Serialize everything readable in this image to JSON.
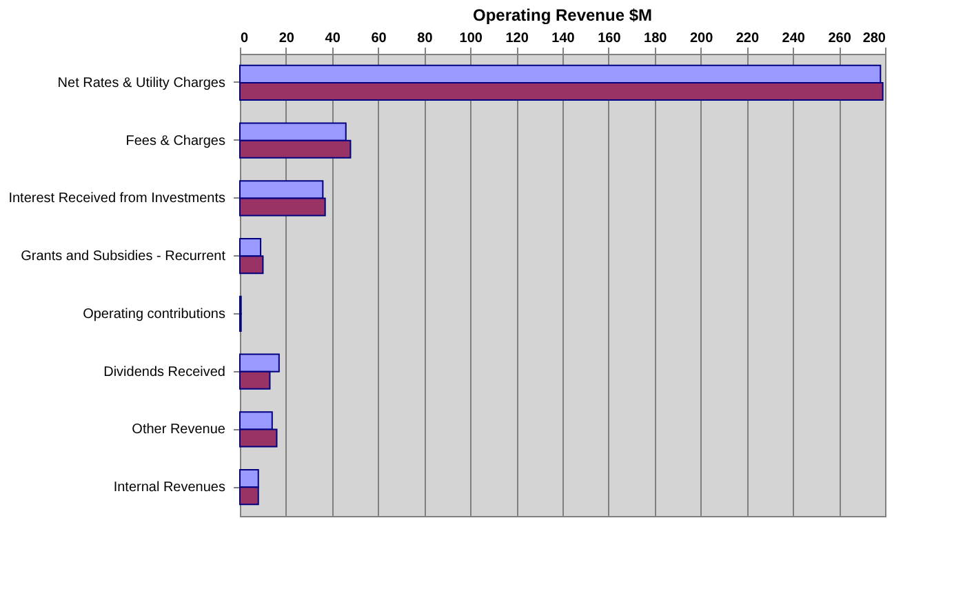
{
  "chart_data": {
    "type": "bar",
    "orientation": "horizontal",
    "title": "Operating Revenue  $M",
    "categories": [
      "Net Rates & Utility Charges",
      "Fees & Charges",
      "Interest Received from Investments",
      "Grants and Subsidies - Recurrent",
      "Operating contributions",
      "Dividends Received",
      "Other Revenue",
      "Internal Revenues"
    ],
    "series": [
      {
        "color": "#9999ff",
        "values": [
          278,
          46,
          36,
          9,
          0.5,
          17,
          14,
          8
        ]
      },
      {
        "color": "#993366",
        "values": [
          279,
          48,
          37,
          10,
          0.5,
          13,
          16,
          8
        ]
      }
    ],
    "xlim": [
      0,
      280
    ],
    "xticks": [
      0,
      20,
      40,
      60,
      80,
      100,
      120,
      140,
      160,
      180,
      200,
      220,
      240,
      260,
      280
    ],
    "grid": "x"
  }
}
